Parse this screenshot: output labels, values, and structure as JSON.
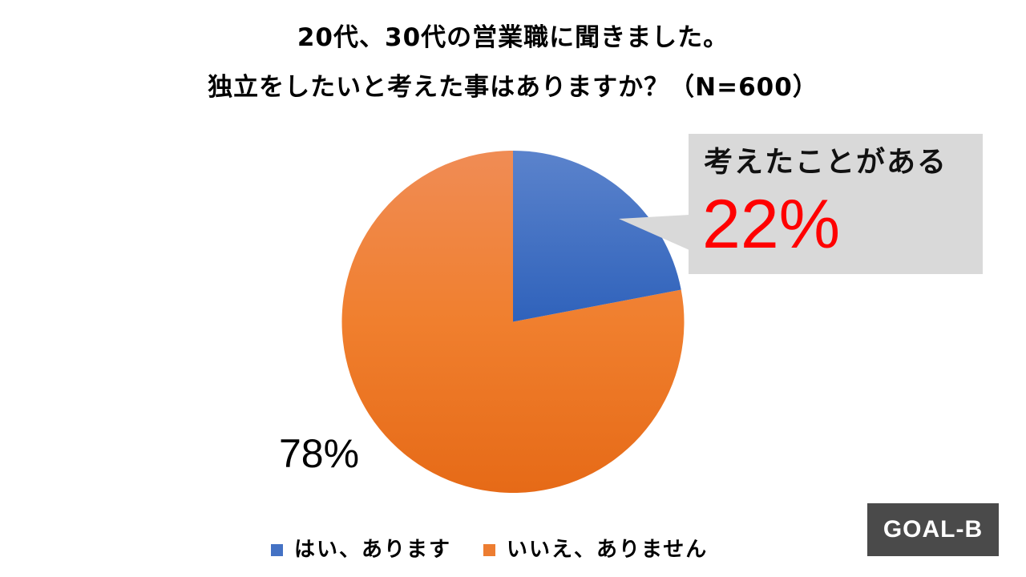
{
  "title": {
    "line1": "20代、30代の営業職に聞きました。",
    "line2": "独立をしたいと考えた事はありますか？（N=600）"
  },
  "callout": {
    "heading": "考えたことがある",
    "value": "22%",
    "value_color": "#ff0000",
    "background": "#d9d9d9"
  },
  "labels": {
    "orange_slice": "78%"
  },
  "legend": {
    "items": [
      {
        "label": "はい、あります",
        "color": "#4472c4"
      },
      {
        "label": "いいえ、ありません",
        "color": "#ed7d31"
      }
    ]
  },
  "logo": {
    "text": "GOAL-B"
  },
  "chart_data": {
    "type": "pie",
    "title": "20代、30代の営業職に聞きました。独立をしたいと考えた事はありますか？（N=600）",
    "sample_size": 600,
    "categories": [
      "はい、あります",
      "いいえ、ありません"
    ],
    "values": [
      22,
      78
    ],
    "unit": "%",
    "colors": [
      "#4472c4",
      "#ed7d31"
    ],
    "start_angle_deg": 0,
    "direction": "clockwise",
    "annotations": [
      {
        "target": "はい、あります",
        "text": "考えたことがある 22%"
      },
      {
        "target": "いいえ、ありません",
        "text": "78%"
      }
    ],
    "legend_position": "bottom"
  }
}
